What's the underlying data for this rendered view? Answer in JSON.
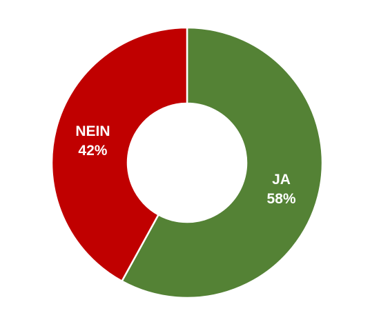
{
  "chart_data": {
    "type": "pie",
    "donut": true,
    "categories": [
      "JA",
      "NEIN"
    ],
    "values": [
      58,
      42
    ],
    "value_labels": [
      "58%",
      "42%"
    ],
    "colors": [
      "#548235",
      "#C00000"
    ],
    "title": "",
    "legend": "none"
  }
}
